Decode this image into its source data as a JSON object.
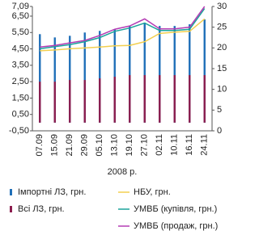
{
  "chart_data": {
    "type": "combo",
    "categories": [
      "07.09",
      "15.09",
      "21.09",
      "29.09",
      "05.10",
      "13.10",
      "19.10",
      "27.10",
      "02.11",
      "10.11",
      "16.11",
      "24.11"
    ],
    "x_label": "2008 р.",
    "ylim": [
      -0.5,
      7.09
    ],
    "yticks": [
      {
        "value": -0.5,
        "label": "-0,50"
      },
      {
        "value": 0.5,
        "label": "0,50"
      },
      {
        "value": 1.5,
        "label": "1,50"
      },
      {
        "value": 2.5,
        "label": "2,50"
      },
      {
        "value": 3.5,
        "label": "3,50"
      },
      {
        "value": 4.5,
        "label": "4,50"
      },
      {
        "value": 5.5,
        "label": "5,50"
      },
      {
        "value": 6.5,
        "label": "6,50"
      },
      {
        "value": 7.09,
        "label": "7,09"
      }
    ],
    "y2lim": [
      0,
      30
    ],
    "y2ticks": [
      0,
      5,
      10,
      15,
      20,
      25,
      30
    ],
    "series": [
      {
        "name": "Імпортні ЛЗ, грн.",
        "type": "bar",
        "color": "#1f6fb8",
        "values": [
          5.4,
          5.2,
          5.3,
          5.5,
          5.6,
          5.7,
          5.9,
          6.1,
          5.9,
          5.9,
          6.0,
          6.3
        ]
      },
      {
        "name": "Всі ЛЗ, грн.",
        "type": "bar",
        "color": "#8c1d4e",
        "values": [
          2.5,
          2.5,
          2.6,
          2.6,
          2.7,
          2.8,
          2.9,
          2.9,
          2.9,
          2.9,
          2.9,
          2.9
        ]
      },
      {
        "name": "НБУ, грн.",
        "type": "line",
        "axis": "y2",
        "color": "#f2cf4f",
        "values": [
          19.3,
          19.5,
          19.8,
          20,
          20.2,
          20.5,
          20.6,
          21.5,
          23.5,
          23.8,
          24,
          27
        ]
      },
      {
        "name": "УМВБ (купівля, грн.)",
        "type": "line",
        "axis": "y2",
        "color": "#1aa39a",
        "values": [
          19.8,
          20.3,
          20.8,
          21.5,
          22.5,
          24,
          24.8,
          26,
          24.2,
          24.2,
          24.5,
          29.5
        ]
      },
      {
        "name": "УМВБ (продаж, грн.)",
        "type": "line",
        "axis": "y2",
        "color": "#b43cb4",
        "values": [
          20.2,
          20.6,
          21.2,
          21.8,
          23,
          24.5,
          25.3,
          27,
          24.6,
          24.6,
          25,
          30
        ]
      }
    ]
  }
}
